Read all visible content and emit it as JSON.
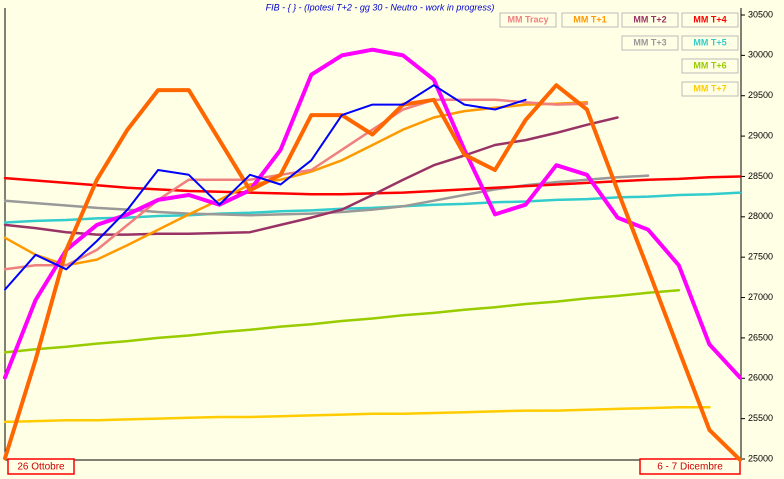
{
  "chart_data": {
    "type": "line",
    "title": "FIB - { } - (Ipotesi T+2  -  gg 30 -  Neutro - work in progress)",
    "categories": [
      "26 Ottobre",
      null,
      null,
      null,
      null,
      null,
      null,
      null,
      null,
      null,
      null,
      null,
      null,
      null,
      null,
      null,
      null,
      null,
      null,
      null,
      null,
      null,
      null,
      null,
      "6 - 7 Dicembre"
    ],
    "ylim": [
      25000,
      30500
    ],
    "yticks": [
      25000,
      25500,
      26000,
      26500,
      27000,
      27500,
      28000,
      28500,
      29000,
      29500,
      30000,
      30500
    ],
    "series": [
      {
        "name": "MM T+7",
        "color": "#ffcc00",
        "values": [
          25460,
          25470,
          25480,
          25480,
          25490,
          25500,
          25510,
          25520,
          25520,
          25530,
          25540,
          25550,
          25560,
          25560,
          25570,
          25580,
          25590,
          25600,
          25600,
          25610,
          25620,
          25630,
          25640,
          25640,
          null
        ]
      },
      {
        "name": "MM T+6",
        "color": "#99cc00",
        "values": [
          26320,
          26360,
          26390,
          26430,
          26460,
          26500,
          26530,
          26570,
          26600,
          26640,
          26670,
          26710,
          26740,
          26780,
          26810,
          26850,
          26880,
          26920,
          26950,
          26990,
          27020,
          27060,
          27090,
          null,
          null
        ]
      },
      {
        "name": "MM T+5",
        "color": "#33cccc",
        "values": [
          27930,
          27950,
          27960,
          27980,
          27990,
          28010,
          28020,
          28040,
          28050,
          28070,
          28080,
          28100,
          28110,
          28130,
          28150,
          28160,
          28180,
          28190,
          28210,
          28220,
          28240,
          28250,
          28270,
          28280,
          28300
        ]
      },
      {
        "name": "MM T+3",
        "color": "#999999",
        "values": [
          28200,
          28170,
          28140,
          28110,
          28090,
          28060,
          28040,
          28030,
          28020,
          28030,
          28040,
          28060,
          28090,
          28130,
          28200,
          28270,
          28340,
          28390,
          28430,
          28460,
          28490,
          28510,
          null,
          null,
          null
        ]
      },
      {
        "name": "MM T+4",
        "color": "#ff0000",
        "values": [
          28480,
          28450,
          28420,
          28390,
          28360,
          28340,
          28320,
          28310,
          28300,
          28290,
          28280,
          28280,
          28290,
          28300,
          28320,
          28340,
          28360,
          28380,
          28400,
          28420,
          28440,
          28460,
          28470,
          28490,
          28500
        ]
      },
      {
        "name": "MM T+2",
        "color": "#993366",
        "values": [
          27900,
          27860,
          27810,
          27780,
          27780,
          27790,
          27790,
          27800,
          27810,
          27900,
          27990,
          28090,
          28270,
          28460,
          28640,
          28760,
          28890,
          28950,
          29040,
          29140,
          29230,
          null,
          null,
          null,
          null
        ]
      },
      {
        "name": "MM T+1",
        "color": "#ff9900",
        "values": [
          27740,
          27530,
          27400,
          27470,
          27650,
          27840,
          28030,
          28210,
          28400,
          28460,
          28560,
          28700,
          28890,
          29080,
          29230,
          29310,
          29350,
          29390,
          29400,
          29420,
          null,
          null,
          null,
          null,
          null
        ]
      },
      {
        "name": "MM Tracy",
        "color": "#f08080",
        "values": [
          27350,
          27400,
          27400,
          27590,
          27900,
          28210,
          28460,
          28460,
          28460,
          28520,
          28580,
          28830,
          29080,
          29330,
          29450,
          29450,
          29450,
          29420,
          29390,
          29400,
          null,
          null,
          null,
          null,
          null
        ]
      },
      {
        "color": "#ff00ff",
        "values": [
          26010,
          26970,
          27590,
          27900,
          28030,
          28210,
          28270,
          28150,
          28330,
          28830,
          29760,
          30000,
          30070,
          30000,
          29700,
          28830,
          28030,
          28150,
          28640,
          28520,
          27990,
          27840,
          27400,
          26420,
          26010
        ]
      },
      {
        "color": "#ff6600",
        "values": [
          25010,
          26230,
          27590,
          28460,
          29080,
          29570,
          29570,
          28950,
          28330,
          28520,
          29260,
          29260,
          29020,
          29390,
          29450,
          28770,
          28580,
          29200,
          29630,
          29330,
          28330,
          27350,
          26350,
          25360,
          24990
        ]
      },
      {
        "color": "#0000ff",
        "values": [
          27100,
          27530,
          27350,
          27700,
          28090,
          28580,
          28520,
          28150,
          28520,
          28400,
          28700,
          29260,
          29390,
          29390,
          29630,
          29390,
          29330,
          29450,
          null,
          null,
          null,
          null,
          null,
          null,
          null
        ]
      }
    ]
  }
}
